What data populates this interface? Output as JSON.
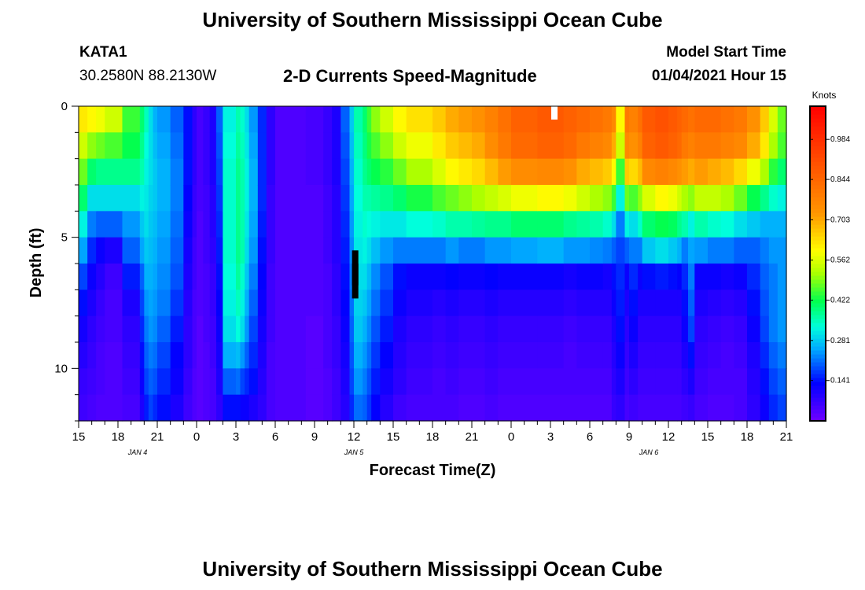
{
  "header": {
    "title": "University of Southern Mississippi Ocean Cube",
    "station": "KATA1",
    "coords": "30.2580N 88.2130W",
    "subtitle": "2-D Currents Speed-Magnitude",
    "start_label": "Model Start Time",
    "start_value": "01/04/2021 Hour 15"
  },
  "footer": {
    "title": "University of Southern Mississippi Ocean Cube"
  },
  "chart_data": {
    "type": "heatmap",
    "xlabel": "Forecast Time(Z)",
    "ylabel": "Depth (ft)",
    "x_tick_labels": [
      "15",
      "18",
      "21",
      "0",
      "3",
      "6",
      "9",
      "12",
      "15",
      "18",
      "21",
      "0",
      "3",
      "6",
      "9",
      "12",
      "15",
      "18",
      "21"
    ],
    "date_labels": [
      {
        "label": "JAN 4",
        "hour": 4.5
      },
      {
        "label": "JAN 5",
        "hour": 21
      },
      {
        "label": "JAN 6",
        "hour": 43.5
      }
    ],
    "x_range_hours": [
      0,
      54
    ],
    "y_ticks": [
      0,
      5,
      10
    ],
    "y_tick_labels": [
      "0",
      "5",
      "10"
    ],
    "ylim": [
      12,
      0
    ],
    "colorbar": {
      "title": "Knots",
      "ticks": [
        0.141,
        0.281,
        0.422,
        0.562,
        0.703,
        0.844,
        0.984
      ],
      "labels": [
        "0.141",
        "0.281",
        "0.422",
        "0.562",
        "0.703",
        "0.844",
        "0.984"
      ],
      "range": [
        0.0,
        1.1
      ]
    },
    "depth_levels_ft": [
      0,
      1,
      2,
      3,
      4,
      5,
      6,
      7,
      8,
      9,
      10,
      11,
      12
    ],
    "column_start_hours": [
      0,
      0.67,
      1.33,
      2,
      3.33,
      4.67,
      5,
      5.33,
      5.67,
      6,
      7,
      8,
      8.67,
      9,
      9.5,
      10,
      10.5,
      11,
      12,
      12.33,
      12.67,
      13,
      13.67,
      14.33,
      15,
      17.33,
      18.67,
      19.33,
      20,
      20.67,
      21,
      21.67,
      22,
      22.33,
      23,
      24,
      25,
      27,
      28,
      29,
      30,
      31,
      32,
      33,
      35,
      37,
      38,
      39,
      40,
      40.67,
      41,
      41.67,
      42,
      42.67,
      43,
      44,
      45,
      45.67,
      46,
      46.5,
      47,
      48,
      49,
      50,
      51,
      52,
      52.67,
      53.33
    ],
    "column_profiles": [
      [
        0.62,
        0.55,
        0.48,
        0.4,
        0.32,
        0.25,
        0.18,
        0.14,
        0.11,
        0.09,
        0.07,
        0.06
      ],
      [
        0.6,
        0.5,
        0.4,
        0.3,
        0.22,
        0.16,
        0.12,
        0.1,
        0.08,
        0.07,
        0.06,
        0.05
      ],
      [
        0.58,
        0.48,
        0.38,
        0.3,
        0.2,
        0.12,
        0.09,
        0.07,
        0.06,
        0.05,
        0.05,
        0.04
      ],
      [
        0.55,
        0.46,
        0.38,
        0.3,
        0.2,
        0.1,
        0.06,
        0.05,
        0.05,
        0.04,
        0.04,
        0.04
      ],
      [
        0.45,
        0.42,
        0.38,
        0.3,
        0.24,
        0.2,
        0.15,
        0.1,
        0.08,
        0.07,
        0.06,
        0.05
      ],
      [
        0.4,
        0.38,
        0.36,
        0.32,
        0.28,
        0.25,
        0.2,
        0.18,
        0.16,
        0.14,
        0.12,
        0.1
      ],
      [
        0.35,
        0.33,
        0.32,
        0.31,
        0.3,
        0.28,
        0.26,
        0.24,
        0.22,
        0.2,
        0.18,
        0.15
      ],
      [
        0.3,
        0.3,
        0.3,
        0.29,
        0.28,
        0.27,
        0.26,
        0.25,
        0.24,
        0.22,
        0.2,
        0.18
      ],
      [
        0.26,
        0.27,
        0.28,
        0.28,
        0.27,
        0.26,
        0.25,
        0.24,
        0.23,
        0.21,
        0.19,
        0.16
      ],
      [
        0.24,
        0.25,
        0.26,
        0.26,
        0.25,
        0.24,
        0.23,
        0.22,
        0.2,
        0.18,
        0.16,
        0.14
      ],
      [
        0.2,
        0.21,
        0.22,
        0.22,
        0.21,
        0.2,
        0.19,
        0.17,
        0.15,
        0.13,
        0.12,
        0.1
      ],
      [
        0.14,
        0.14,
        0.14,
        0.13,
        0.12,
        0.11,
        0.1,
        0.09,
        0.08,
        0.08,
        0.07,
        0.06
      ],
      [
        0.08,
        0.08,
        0.08,
        0.07,
        0.07,
        0.06,
        0.06,
        0.05,
        0.05,
        0.05,
        0.04,
        0.04
      ],
      [
        0.05,
        0.05,
        0.05,
        0.05,
        0.04,
        0.04,
        0.04,
        0.04,
        0.03,
        0.03,
        0.03,
        0.03
      ],
      [
        0.07,
        0.07,
        0.07,
        0.06,
        0.06,
        0.06,
        0.05,
        0.05,
        0.05,
        0.04,
        0.04,
        0.04
      ],
      [
        0.1,
        0.1,
        0.1,
        0.09,
        0.09,
        0.08,
        0.07,
        0.07,
        0.06,
        0.06,
        0.05,
        0.05
      ],
      [
        0.2,
        0.19,
        0.18,
        0.17,
        0.16,
        0.15,
        0.14,
        0.13,
        0.12,
        0.11,
        0.1,
        0.08
      ],
      [
        0.32,
        0.33,
        0.34,
        0.34,
        0.34,
        0.34,
        0.33,
        0.32,
        0.3,
        0.26,
        0.2,
        0.14
      ],
      [
        0.36,
        0.37,
        0.38,
        0.38,
        0.38,
        0.38,
        0.37,
        0.35,
        0.33,
        0.27,
        0.21,
        0.14
      ],
      [
        0.34,
        0.35,
        0.36,
        0.36,
        0.36,
        0.36,
        0.34,
        0.32,
        0.3,
        0.24,
        0.18,
        0.12
      ],
      [
        0.3,
        0.31,
        0.32,
        0.32,
        0.31,
        0.3,
        0.28,
        0.26,
        0.24,
        0.2,
        0.16,
        0.12
      ],
      [
        0.24,
        0.25,
        0.26,
        0.26,
        0.25,
        0.24,
        0.22,
        0.2,
        0.18,
        0.16,
        0.14,
        0.1
      ],
      [
        0.16,
        0.16,
        0.16,
        0.16,
        0.15,
        0.14,
        0.13,
        0.12,
        0.11,
        0.1,
        0.09,
        0.08
      ],
      [
        0.08,
        0.08,
        0.08,
        0.07,
        0.07,
        0.07,
        0.06,
        0.06,
        0.06,
        0.05,
        0.05,
        0.05
      ],
      [
        0.04,
        0.04,
        0.04,
        0.04,
        0.04,
        0.04,
        0.04,
        0.04,
        0.04,
        0.04,
        0.04,
        0.04
      ],
      [
        0.05,
        0.05,
        0.05,
        0.04,
        0.04,
        0.04,
        0.04,
        0.04,
        0.03,
        0.03,
        0.03,
        0.03
      ],
      [
        0.07,
        0.07,
        0.07,
        0.06,
        0.06,
        0.06,
        0.05,
        0.05,
        0.05,
        0.05,
        0.04,
        0.04
      ],
      [
        0.1,
        0.1,
        0.1,
        0.09,
        0.09,
        0.09,
        0.08,
        0.08,
        0.07,
        0.07,
        0.06,
        0.06
      ],
      [
        0.2,
        0.19,
        0.18,
        0.17,
        0.16,
        0.15,
        0.14,
        0.13,
        0.12,
        0.11,
        0.1,
        0.09
      ],
      [
        0.28,
        0.27,
        0.26,
        0.25,
        0.24,
        0.23,
        0.22,
        0.21,
        0.2,
        0.19,
        0.18,
        0.16
      ],
      [
        0.36,
        0.35,
        0.34,
        0.33,
        0.32,
        0.31,
        0.3,
        0.29,
        0.28,
        0.26,
        0.24,
        0.21
      ],
      [
        0.4,
        0.39,
        0.38,
        0.36,
        0.34,
        0.32,
        0.3,
        0.28,
        0.26,
        0.24,
        0.22,
        0.2
      ],
      [
        0.45,
        0.43,
        0.4,
        0.36,
        0.33,
        0.3,
        0.27,
        0.25,
        0.23,
        0.21,
        0.19,
        0.17
      ],
      [
        0.5,
        0.46,
        0.42,
        0.37,
        0.32,
        0.27,
        0.23,
        0.21,
        0.19,
        0.17,
        0.15,
        0.13
      ],
      [
        0.55,
        0.5,
        0.44,
        0.38,
        0.31,
        0.24,
        0.19,
        0.17,
        0.15,
        0.13,
        0.11,
        0.09
      ],
      [
        0.6,
        0.55,
        0.48,
        0.4,
        0.31,
        0.22,
        0.14,
        0.12,
        0.1,
        0.09,
        0.08,
        0.06
      ],
      [
        0.63,
        0.58,
        0.52,
        0.43,
        0.33,
        0.22,
        0.12,
        0.1,
        0.08,
        0.07,
        0.06,
        0.05
      ],
      [
        0.66,
        0.62,
        0.56,
        0.46,
        0.34,
        0.22,
        0.12,
        0.09,
        0.07,
        0.06,
        0.05,
        0.05
      ],
      [
        0.7,
        0.66,
        0.6,
        0.48,
        0.36,
        0.24,
        0.13,
        0.1,
        0.08,
        0.07,
        0.06,
        0.05
      ],
      [
        0.72,
        0.68,
        0.62,
        0.5,
        0.36,
        0.22,
        0.12,
        0.09,
        0.07,
        0.06,
        0.05,
        0.04
      ],
      [
        0.74,
        0.7,
        0.64,
        0.52,
        0.37,
        0.22,
        0.12,
        0.09,
        0.07,
        0.06,
        0.05,
        0.04
      ],
      [
        0.78,
        0.75,
        0.68,
        0.54,
        0.38,
        0.24,
        0.13,
        0.1,
        0.08,
        0.07,
        0.06,
        0.05
      ],
      [
        0.82,
        0.8,
        0.72,
        0.56,
        0.38,
        0.24,
        0.12,
        0.09,
        0.07,
        0.06,
        0.05,
        0.04
      ],
      [
        0.86,
        0.84,
        0.75,
        0.58,
        0.4,
        0.25,
        0.12,
        0.09,
        0.07,
        0.06,
        0.05,
        0.04
      ],
      [
        0.88,
        0.86,
        0.76,
        0.6,
        0.4,
        0.26,
        0.12,
        0.09,
        0.07,
        0.06,
        0.05,
        0.04
      ],
      [
        0.86,
        0.84,
        0.74,
        0.58,
        0.38,
        0.24,
        0.11,
        0.08,
        0.06,
        0.05,
        0.05,
        0.04
      ],
      [
        0.84,
        0.8,
        0.7,
        0.55,
        0.37,
        0.24,
        0.12,
        0.09,
        0.07,
        0.06,
        0.05,
        0.04
      ],
      [
        0.82,
        0.78,
        0.68,
        0.52,
        0.36,
        0.23,
        0.12,
        0.09,
        0.07,
        0.06,
        0.05,
        0.04
      ],
      [
        0.8,
        0.76,
        0.66,
        0.5,
        0.34,
        0.22,
        0.11,
        0.09,
        0.07,
        0.06,
        0.05,
        0.04
      ],
      [
        0.76,
        0.7,
        0.6,
        0.45,
        0.3,
        0.2,
        0.14,
        0.12,
        0.1,
        0.09,
        0.08,
        0.07
      ],
      [
        0.6,
        0.55,
        0.45,
        0.32,
        0.22,
        0.18,
        0.16,
        0.15,
        0.14,
        0.12,
        0.1,
        0.08
      ],
      [
        0.8,
        0.76,
        0.66,
        0.48,
        0.32,
        0.2,
        0.12,
        0.1,
        0.08,
        0.07,
        0.06,
        0.05
      ],
      [
        0.78,
        0.74,
        0.64,
        0.46,
        0.3,
        0.22,
        0.16,
        0.14,
        0.12,
        0.1,
        0.08,
        0.06
      ],
      [
        0.82,
        0.78,
        0.68,
        0.5,
        0.34,
        0.22,
        0.12,
        0.1,
        0.08,
        0.07,
        0.06,
        0.05
      ],
      [
        0.88,
        0.86,
        0.76,
        0.56,
        0.4,
        0.28,
        0.14,
        0.1,
        0.08,
        0.07,
        0.06,
        0.05
      ],
      [
        0.9,
        0.88,
        0.78,
        0.6,
        0.42,
        0.3,
        0.15,
        0.1,
        0.08,
        0.07,
        0.06,
        0.05
      ],
      [
        0.88,
        0.86,
        0.76,
        0.58,
        0.41,
        0.28,
        0.14,
        0.1,
        0.08,
        0.07,
        0.06,
        0.05
      ],
      [
        0.86,
        0.84,
        0.74,
        0.55,
        0.38,
        0.26,
        0.13,
        0.1,
        0.08,
        0.07,
        0.06,
        0.05
      ],
      [
        0.84,
        0.8,
        0.72,
        0.52,
        0.36,
        0.22,
        0.16,
        0.14,
        0.12,
        0.1,
        0.08,
        0.06
      ],
      [
        0.82,
        0.78,
        0.7,
        0.5,
        0.32,
        0.25,
        0.22,
        0.2,
        0.18,
        0.14,
        0.1,
        0.07
      ],
      [
        0.84,
        0.8,
        0.72,
        0.54,
        0.36,
        0.24,
        0.12,
        0.1,
        0.08,
        0.07,
        0.06,
        0.05
      ],
      [
        0.84,
        0.8,
        0.7,
        0.54,
        0.34,
        0.22,
        0.12,
        0.09,
        0.07,
        0.06,
        0.05,
        0.04
      ],
      [
        0.82,
        0.78,
        0.68,
        0.52,
        0.33,
        0.22,
        0.11,
        0.08,
        0.06,
        0.05,
        0.05,
        0.04
      ],
      [
        0.8,
        0.76,
        0.64,
        0.48,
        0.3,
        0.2,
        0.12,
        0.09,
        0.07,
        0.06,
        0.05,
        0.05
      ],
      [
        0.74,
        0.7,
        0.58,
        0.42,
        0.28,
        0.2,
        0.16,
        0.14,
        0.12,
        0.1,
        0.09,
        0.08
      ],
      [
        0.66,
        0.62,
        0.52,
        0.38,
        0.26,
        0.22,
        0.2,
        0.19,
        0.18,
        0.16,
        0.14,
        0.12
      ],
      [
        0.56,
        0.52,
        0.44,
        0.34,
        0.26,
        0.24,
        0.22,
        0.22,
        0.22,
        0.2,
        0.18,
        0.16
      ],
      [
        0.48,
        0.46,
        0.4,
        0.32,
        0.26,
        0.24,
        0.24,
        0.24,
        0.24,
        0.22,
        0.2,
        0.18
      ]
    ],
    "masked_cells": [
      {
        "hour": 21.1,
        "depth_ft": 5.5,
        "color": "#000000"
      },
      {
        "hour": 21.1,
        "depth_ft": 6.0,
        "color": "#000000"
      },
      {
        "hour": 36.3,
        "depth_ft": 0,
        "color": "#ffffff"
      }
    ]
  }
}
